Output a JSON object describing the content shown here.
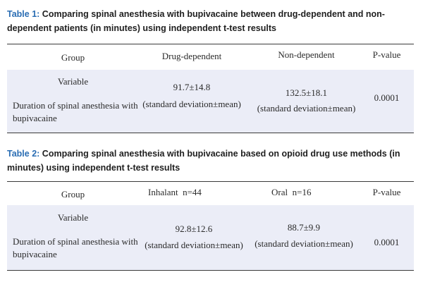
{
  "table1": {
    "caption_label": "Table 1:",
    "caption_text": " Comparing spinal anesthesia with bupivacaine between drug-dependent and non-dependent patients (in minutes) using independent t-test results",
    "headers": {
      "group": "Group",
      "col1": "Drug-dependent",
      "col2": "Non-dependent",
      "col3": "P-value"
    },
    "variable_label": "Variable",
    "row_label": "Duration of spinal anesthesia with bupivacaine",
    "col1_value": "91.7±14.8",
    "col1_note": "(standard deviation±mean)",
    "col2_value": "132.5±18.1",
    "col2_note": "(standard deviation±mean)",
    "p_value": "0.0001"
  },
  "table2": {
    "caption_label": "Table 2:",
    "caption_text": " Comparing spinal anesthesia with bupivacaine based on opioid drug use methods (in minutes) using independent t-test results",
    "headers": {
      "group": "Group",
      "col1": "Inhalant",
      "col1_n": "n=44",
      "col2": "Oral",
      "col2_n": "n=16",
      "col3": "P-value"
    },
    "variable_label": "Variable",
    "row_label": "Duration of spinal anesthesia with bupivacaine",
    "col1_value": "92.8±12.6",
    "col1_note": "(standard deviation±mean)",
    "col2_value": "88.7±9.9",
    "col2_note": "(standard deviation±mean)",
    "p_value": "0.0001"
  },
  "colors": {
    "caption_label": "#2a6db3",
    "band": "#ebedf7",
    "rule": "#3a3a3a"
  }
}
